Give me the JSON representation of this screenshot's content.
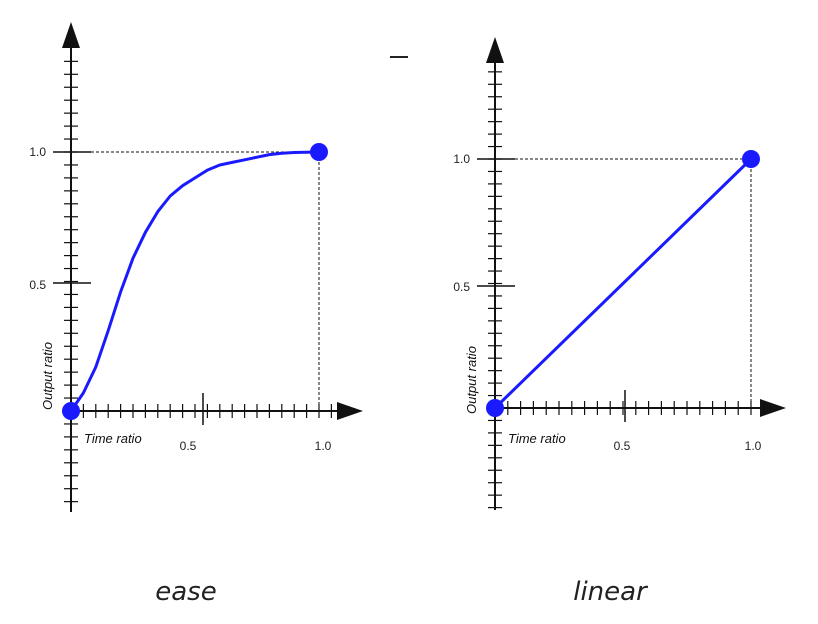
{
  "chart_data": [
    {
      "type": "line",
      "title": "ease",
      "xlabel": "Time ratio",
      "ylabel": "Output ratio",
      "xlim": [
        0,
        1
      ],
      "ylim": [
        0,
        1
      ],
      "x_tick_labels": [
        "0.5",
        "1.0"
      ],
      "y_tick_labels": [
        "0.5",
        "1.0"
      ],
      "series": [
        {
          "color": "#1a1aff",
          "x": [
            0.0,
            0.05,
            0.1,
            0.15,
            0.2,
            0.25,
            0.3,
            0.35,
            0.4,
            0.45,
            0.5,
            0.55,
            0.6,
            0.65,
            0.7,
            0.75,
            0.8,
            0.85,
            0.9,
            0.95,
            1.0
          ],
          "y": [
            0.0,
            0.07,
            0.17,
            0.31,
            0.46,
            0.59,
            0.69,
            0.77,
            0.83,
            0.87,
            0.9,
            0.93,
            0.95,
            0.96,
            0.97,
            0.98,
            0.99,
            0.995,
            0.998,
            0.999,
            1.0
          ]
        }
      ],
      "endpoints": [
        [
          0,
          0
        ],
        [
          1,
          1
        ]
      ]
    },
    {
      "type": "line",
      "title": "linear",
      "xlabel": "Time ratio",
      "ylabel": "Output ratio",
      "xlim": [
        0,
        1
      ],
      "ylim": [
        0,
        1
      ],
      "x_tick_labels": [
        "0.5",
        "1.0"
      ],
      "y_tick_labels": [
        "0.5",
        "1.0"
      ],
      "series": [
        {
          "color": "#1a1aff",
          "x": [
            0,
            1
          ],
          "y": [
            0,
            1
          ]
        }
      ],
      "endpoints": [
        [
          0,
          0
        ],
        [
          1,
          1
        ]
      ]
    }
  ]
}
